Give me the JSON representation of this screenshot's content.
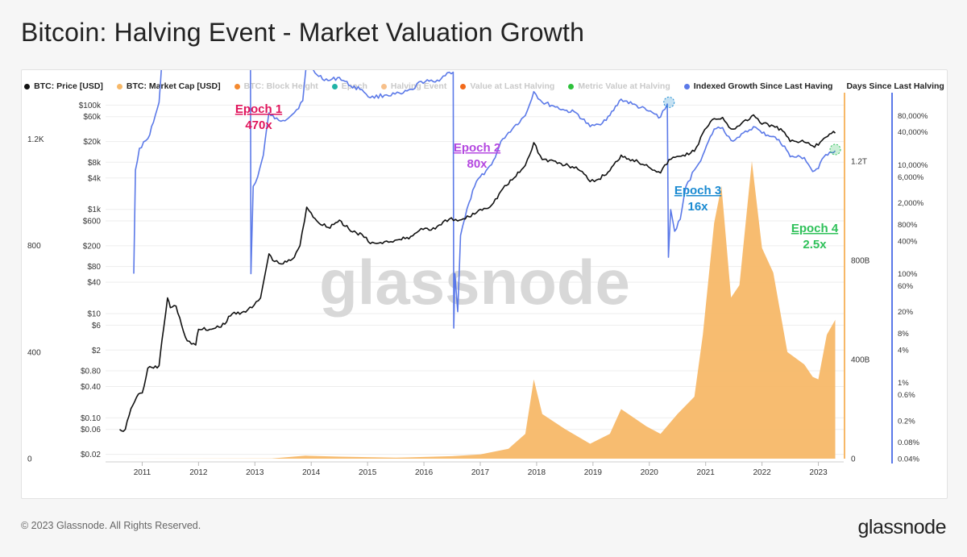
{
  "title": "Bitcoin: Halving Event - Market Valuation Growth",
  "footer": "© 2023 Glassnode. All Rights Reserved.",
  "brand": "glassnode",
  "watermark": "glassnode",
  "legend": [
    {
      "label": "BTC: Price [USD]",
      "color": "#111111",
      "active": true
    },
    {
      "label": "BTC: Market Cap [USD]",
      "color": "#f7b868",
      "active": true
    },
    {
      "label": "BTC: Block Height",
      "color": "#f4892f",
      "active": false
    },
    {
      "label": "Epoch",
      "color": "#21b3a6",
      "active": false
    },
    {
      "label": "Halving Event",
      "color": "#f7c08a",
      "active": false
    },
    {
      "label": "Value at Last Halving",
      "color": "#f26a1b",
      "active": false
    },
    {
      "label": "Metric Value at Halving",
      "color": "#2ec13c",
      "active": false
    },
    {
      "label": "Indexed Growth Since Last Having",
      "color": "#5b79e8",
      "active": true
    },
    {
      "label": "Days Since Last Halving",
      "color": null,
      "active": true
    }
  ],
  "chart_data": {
    "type": "line",
    "x_ticks": [
      "2011",
      "2012",
      "2013",
      "2014",
      "2015",
      "2016",
      "2017",
      "2018",
      "2019",
      "2020",
      "2021",
      "2022",
      "2023"
    ],
    "y_axes": {
      "days": {
        "ticks": [
          "1.2K",
          "800",
          "400",
          "0"
        ]
      },
      "price": {
        "scale": "log",
        "ticks": [
          "$100k",
          "$60k",
          "$20k",
          "$8k",
          "$4k",
          "$1k",
          "$600",
          "$200",
          "$80",
          "$40",
          "$10",
          "$6",
          "$2",
          "$0.80",
          "$0.40",
          "$0.10",
          "$0.06",
          "$0.02"
        ]
      },
      "market_cap": {
        "ticks": [
          "1.2T",
          "800B",
          "400B",
          "0"
        ],
        "max": "1.2T"
      },
      "growth": {
        "scale": "log",
        "ticks": [
          "80,000%",
          "40,000%",
          "10,000%",
          "6,000%",
          "2,000%",
          "800%",
          "400%",
          "100%",
          "60%",
          "20%",
          "8%",
          "4%",
          "1%",
          "0.6%",
          "0.2%",
          "0.08%",
          "0.04%"
        ]
      }
    },
    "series": [
      {
        "name": "BTC: Price [USD]",
        "color": "#111111",
        "points": [
          [
            2010.6,
            0.06
          ],
          [
            2010.7,
            0.06
          ],
          [
            2010.8,
            0.15
          ],
          [
            2010.9,
            0.25
          ],
          [
            2011.0,
            0.3
          ],
          [
            2011.1,
            0.9
          ],
          [
            2011.2,
            0.9
          ],
          [
            2011.3,
            1.0
          ],
          [
            2011.35,
            3.0
          ],
          [
            2011.45,
            20
          ],
          [
            2011.5,
            13
          ],
          [
            2011.6,
            14
          ],
          [
            2011.7,
            6
          ],
          [
            2011.8,
            3.0
          ],
          [
            2011.95,
            2.5
          ],
          [
            2012.0,
            5
          ],
          [
            2012.2,
            5
          ],
          [
            2012.4,
            5.5
          ],
          [
            2012.6,
            10
          ],
          [
            2012.8,
            11
          ],
          [
            2012.95,
            13
          ],
          [
            2013.1,
            20
          ],
          [
            2013.25,
            140
          ],
          [
            2013.35,
            100
          ],
          [
            2013.5,
            90
          ],
          [
            2013.7,
            120
          ],
          [
            2013.8,
            200
          ],
          [
            2013.92,
            1100
          ],
          [
            2014.0,
            850
          ],
          [
            2014.1,
            600
          ],
          [
            2014.3,
            450
          ],
          [
            2014.5,
            620
          ],
          [
            2014.7,
            380
          ],
          [
            2014.9,
            330
          ],
          [
            2015.05,
            220
          ],
          [
            2015.3,
            240
          ],
          [
            2015.6,
            260
          ],
          [
            2015.8,
            310
          ],
          [
            2015.95,
            430
          ],
          [
            2016.2,
            420
          ],
          [
            2016.45,
            650
          ],
          [
            2016.6,
            600
          ],
          [
            2016.8,
            720
          ],
          [
            2017.0,
            1000
          ],
          [
            2017.2,
            1200
          ],
          [
            2017.4,
            2500
          ],
          [
            2017.6,
            4000
          ],
          [
            2017.8,
            7000
          ],
          [
            2017.95,
            19000
          ],
          [
            2018.1,
            9000
          ],
          [
            2018.3,
            8500
          ],
          [
            2018.5,
            7000
          ],
          [
            2018.7,
            6500
          ],
          [
            2018.95,
            3400
          ],
          [
            2019.1,
            3800
          ],
          [
            2019.3,
            5500
          ],
          [
            2019.5,
            11000
          ],
          [
            2019.7,
            9000
          ],
          [
            2019.95,
            7200
          ],
          [
            2020.2,
            5000
          ],
          [
            2020.35,
            9000
          ],
          [
            2020.6,
            11000
          ],
          [
            2020.8,
            13000
          ],
          [
            2020.95,
            29000
          ],
          [
            2021.15,
            55000
          ],
          [
            2021.3,
            58000
          ],
          [
            2021.45,
            35000
          ],
          [
            2021.6,
            40000
          ],
          [
            2021.85,
            65000
          ],
          [
            2022.0,
            43000
          ],
          [
            2022.2,
            40000
          ],
          [
            2022.4,
            30000
          ],
          [
            2022.5,
            20000
          ],
          [
            2022.75,
            19500
          ],
          [
            2022.9,
            16500
          ],
          [
            2023.0,
            17000
          ],
          [
            2023.1,
            23000
          ],
          [
            2023.2,
            28000
          ],
          [
            2023.3,
            29000
          ]
        ]
      },
      {
        "name": "Indexed Growth Since Last Having",
        "color": "#5b79e8",
        "points": [
          [
            2010.85,
            1
          ],
          [
            2010.88,
            80
          ],
          [
            2010.95,
            200
          ],
          [
            2011.1,
            300
          ],
          [
            2011.2,
            600
          ],
          [
            2011.3,
            1400
          ],
          [
            2011.35,
            8000
          ],
          [
            2011.45,
            50000
          ],
          [
            2011.52,
            30000
          ],
          [
            2011.6,
            35000
          ],
          [
            2011.75,
            12000
          ],
          [
            2011.9,
            8000
          ],
          [
            2012.0,
            12000
          ],
          [
            2012.2,
            11000
          ],
          [
            2012.4,
            12000
          ],
          [
            2012.6,
            26000
          ],
          [
            2012.8,
            40000
          ],
          [
            2012.92,
            42000
          ],
          [
            2012.93,
            1
          ],
          [
            2012.97,
            40
          ],
          [
            2013.05,
            60
          ],
          [
            2013.15,
            150
          ],
          [
            2013.25,
            900
          ],
          [
            2013.35,
            700
          ],
          [
            2013.5,
            650
          ],
          [
            2013.7,
            900
          ],
          [
            2013.85,
            1500
          ],
          [
            2013.92,
            8000
          ],
          [
            2014.0,
            6000
          ],
          [
            2014.1,
            4500
          ],
          [
            2014.3,
            3500
          ],
          [
            2014.5,
            4000
          ],
          [
            2014.7,
            2800
          ],
          [
            2014.9,
            2400
          ],
          [
            2015.05,
            1700
          ],
          [
            2015.3,
            1900
          ],
          [
            2015.6,
            2000
          ],
          [
            2015.8,
            2400
          ],
          [
            2015.95,
            3400
          ],
          [
            2016.2,
            3300
          ],
          [
            2016.45,
            5000
          ],
          [
            2016.52,
            5000
          ],
          [
            2016.53,
            0.1
          ],
          [
            2016.55,
            1
          ],
          [
            2016.6,
            0.2
          ],
          [
            2016.65,
            5
          ],
          [
            2016.8,
            20
          ],
          [
            2016.9,
            40
          ],
          [
            2017.0,
            60
          ],
          [
            2017.2,
            100
          ],
          [
            2017.4,
            300
          ],
          [
            2017.6,
            500
          ],
          [
            2017.8,
            800
          ],
          [
            2017.95,
            2200
          ],
          [
            2018.1,
            1400
          ],
          [
            2018.3,
            1200
          ],
          [
            2018.5,
            1000
          ],
          [
            2018.7,
            900
          ],
          [
            2018.95,
            500
          ],
          [
            2019.1,
            550
          ],
          [
            2019.3,
            800
          ],
          [
            2019.5,
            1600
          ],
          [
            2019.7,
            1300
          ],
          [
            2019.95,
            1000
          ],
          [
            2020.2,
            750
          ],
          [
            2020.32,
            1300
          ],
          [
            2020.34,
            2
          ],
          [
            2020.38,
            15
          ],
          [
            2020.45,
            6
          ],
          [
            2020.55,
            10
          ],
          [
            2020.65,
            40
          ],
          [
            2020.8,
            80
          ],
          [
            2020.95,
            150
          ],
          [
            2021.15,
            450
          ],
          [
            2021.3,
            480
          ],
          [
            2021.45,
            280
          ],
          [
            2021.6,
            320
          ],
          [
            2021.85,
            500
          ],
          [
            2022.0,
            380
          ],
          [
            2022.2,
            330
          ],
          [
            2022.4,
            220
          ],
          [
            2022.5,
            140
          ],
          [
            2022.75,
            135
          ],
          [
            2022.9,
            75
          ],
          [
            2023.0,
            85
          ],
          [
            2023.1,
            140
          ],
          [
            2023.2,
            170
          ],
          [
            2023.3,
            180
          ]
        ]
      },
      {
        "name": "BTC: Market Cap [USD]",
        "color": "#f7b868",
        "unit": "B",
        "points": [
          [
            2010.6,
            0
          ],
          [
            2013.3,
            1
          ],
          [
            2013.9,
            12
          ],
          [
            2014.5,
            8
          ],
          [
            2015.5,
            4
          ],
          [
            2016.5,
            10
          ],
          [
            2017.0,
            17
          ],
          [
            2017.5,
            40
          ],
          [
            2017.8,
            100
          ],
          [
            2017.95,
            320
          ],
          [
            2018.1,
            180
          ],
          [
            2018.5,
            120
          ],
          [
            2018.95,
            60
          ],
          [
            2019.3,
            100
          ],
          [
            2019.5,
            200
          ],
          [
            2019.95,
            130
          ],
          [
            2020.2,
            100
          ],
          [
            2020.5,
            180
          ],
          [
            2020.8,
            250
          ],
          [
            2020.95,
            500
          ],
          [
            2021.15,
            950
          ],
          [
            2021.28,
            1100
          ],
          [
            2021.45,
            650
          ],
          [
            2021.6,
            700
          ],
          [
            2021.82,
            1200
          ],
          [
            2022.0,
            850
          ],
          [
            2022.2,
            750
          ],
          [
            2022.45,
            430
          ],
          [
            2022.75,
            380
          ],
          [
            2022.9,
            330
          ],
          [
            2023.0,
            320
          ],
          [
            2023.15,
            500
          ],
          [
            2023.3,
            560
          ]
        ]
      }
    ],
    "annotations": [
      {
        "label": "Epoch 1",
        "value": "470x",
        "color": "#e0155c",
        "x": 2012.92,
        "anchor": "price"
      },
      {
        "label": "Epoch 2",
        "value": "80x",
        "color": "#b448e0",
        "x": 2016.52,
        "anchor": "price"
      },
      {
        "label": "Epoch 3",
        "value": "16x",
        "color": "#1a8ad1",
        "x": 2020.35,
        "anchor": "price"
      },
      {
        "label": "Epoch 4",
        "value": "2.5x",
        "color": "#2fc15a",
        "x": 2023.3,
        "anchor": "price"
      }
    ]
  }
}
